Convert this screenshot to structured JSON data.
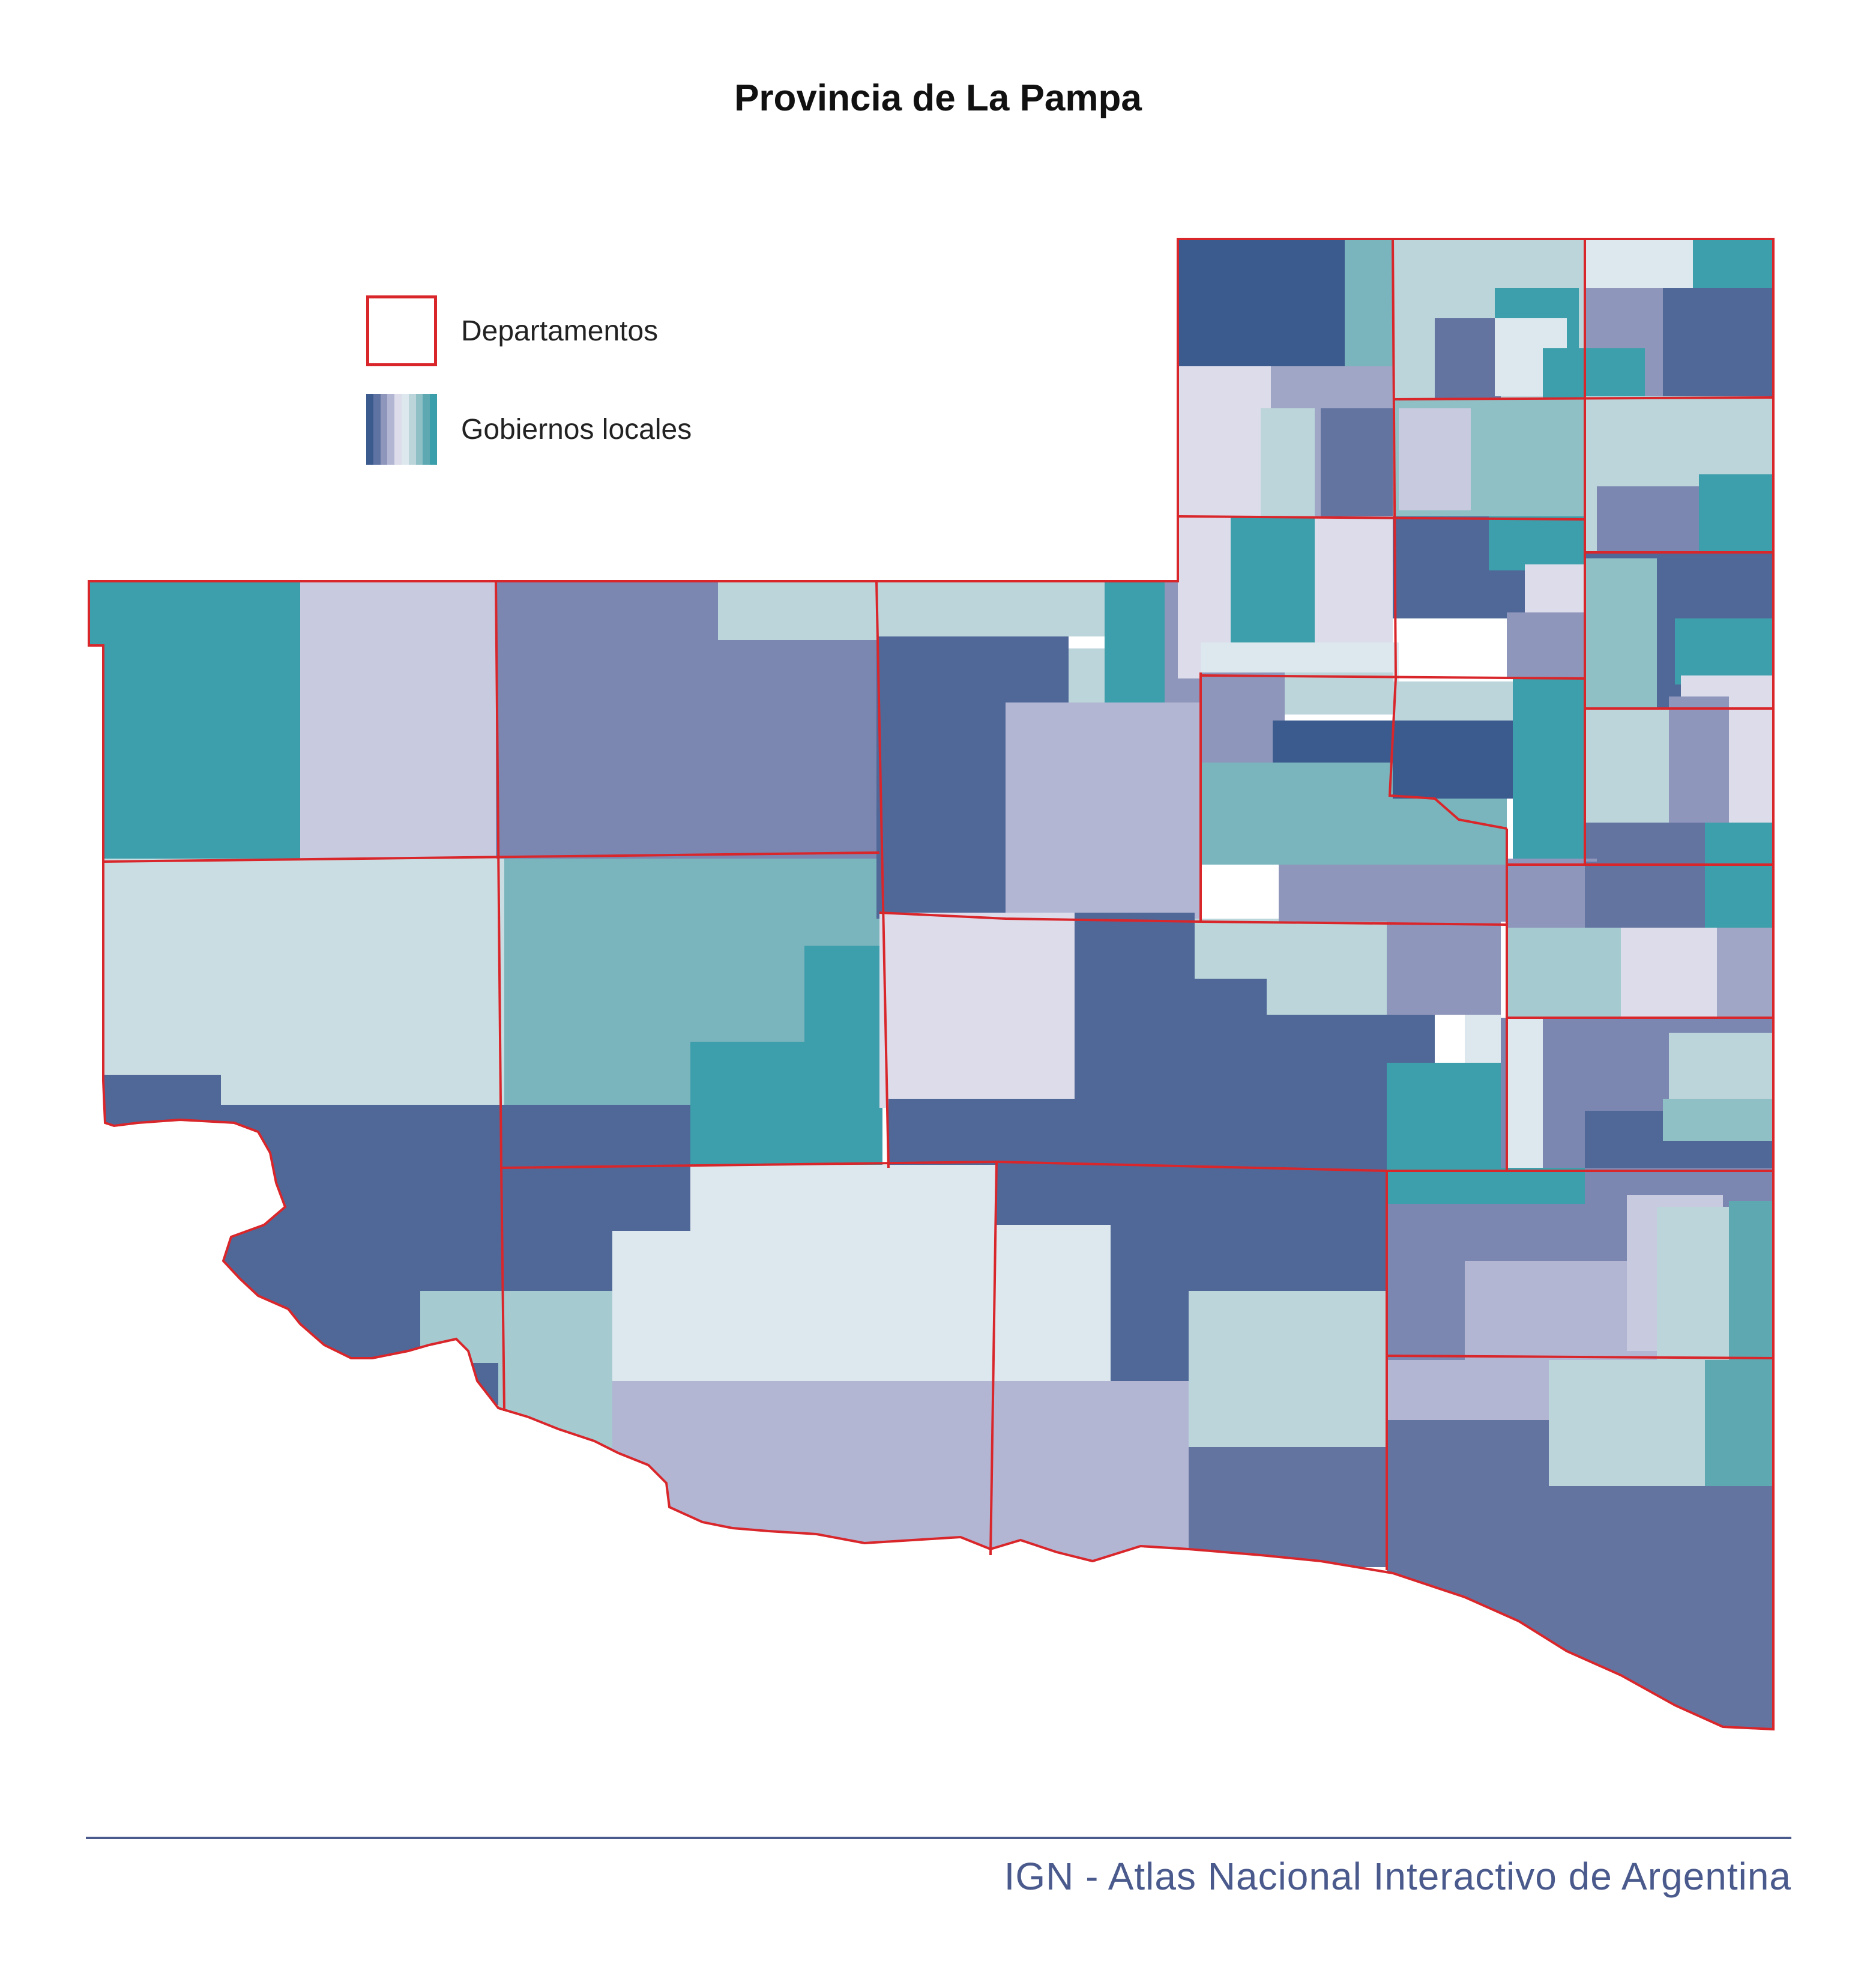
{
  "title": "Provincia de La Pampa",
  "legend": {
    "departments_label": "Departamentos",
    "local_gov_label": "Gobiernos locales",
    "department_border_color": "#d9262b",
    "ramp_colors": [
      "#3b5a8e",
      "#5f73a3",
      "#8e96bc",
      "#b3b6d3",
      "#dcdcea",
      "#dde8ee",
      "#bcd5da",
      "#8ec0c6",
      "#5ea8b2",
      "#3a9faa"
    ]
  },
  "palette": {
    "teal": "#3d9fab",
    "teal_mid": "#7ab4bd",
    "teal_light": "#a5cbd1",
    "mint": "#bbd5da",
    "ice": "#dde8ee",
    "lavender_pale": "#dcdcea",
    "lavender": "#b3b6d3",
    "periwinkle": "#c8cadf",
    "slate_light": "#8f96bb",
    "slate": "#7b87b0",
    "navy_mid": "#6474a1",
    "navy": "#506898",
    "navy_dark": "#3b5a8e",
    "seafoam": "#8ec0c6"
  },
  "footer": {
    "credit": "IGN - Atlas Nacional Interactivo de Argentina"
  }
}
